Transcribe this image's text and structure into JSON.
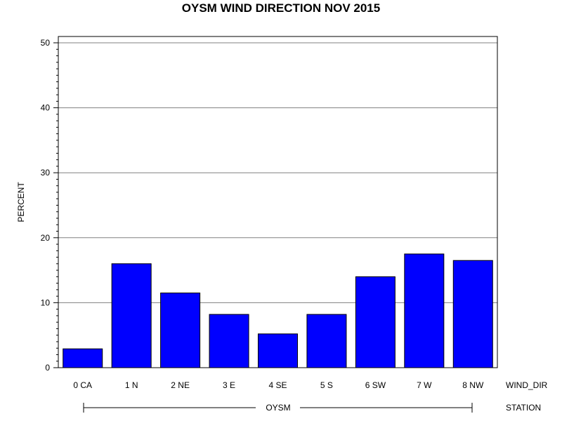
{
  "chart_data": {
    "type": "bar",
    "title": "OYSM WIND DIRECTION NOV 2015",
    "ylabel": "PERCENT",
    "xlabel": "WIND_DIR",
    "group_axis_label": "STATION",
    "group_label": "OYSM",
    "categories": [
      "0 CA",
      "1 N",
      "2 NE",
      "3 E",
      "4 SE",
      "5 S",
      "6 SW",
      "7 W",
      "8 NW"
    ],
    "values": [
      2.9,
      16.0,
      11.5,
      8.2,
      5.2,
      8.2,
      14.0,
      17.5,
      16.5
    ],
    "ylim": [
      0,
      50
    ],
    "yticks": [
      "0",
      "10",
      "20",
      "30",
      "40",
      "50"
    ],
    "grid": true,
    "legend": "none",
    "bar_color": "#0000ff",
    "bar_edge_color": "#000000",
    "grid_color": "#808080"
  }
}
